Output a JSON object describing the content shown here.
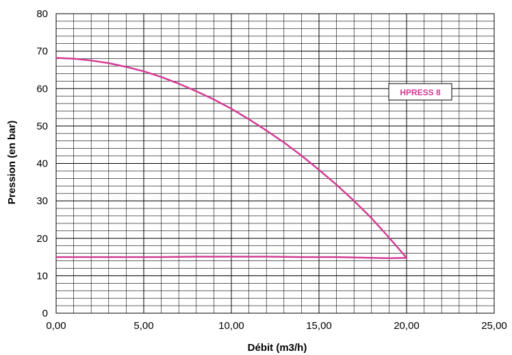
{
  "chart_data": {
    "type": "line",
    "title": "",
    "xlabel": "Débit (m3/h)",
    "ylabel": "Pression (en bar)",
    "xlim": [
      0,
      25
    ],
    "ylim": [
      0,
      80
    ],
    "x_ticks": [
      0,
      5,
      10,
      15,
      20,
      25
    ],
    "x_tick_labels": [
      "0,00",
      "5,00",
      "10,00",
      "15,00",
      "20,00",
      "25,00"
    ],
    "y_ticks": [
      0,
      10,
      20,
      30,
      40,
      50,
      60,
      70,
      80
    ],
    "y_tick_labels": [
      "0",
      "10",
      "20",
      "30",
      "40",
      "50",
      "60",
      "70",
      "80"
    ],
    "grid": true,
    "minor_x_step": 1,
    "minor_y_step": 2,
    "legend_position": "top-right",
    "series": [
      {
        "name": "HPRESS 8",
        "color": "#d23c94",
        "x": [
          0,
          1,
          2,
          3,
          4,
          5,
          6,
          7,
          8,
          9,
          10,
          11,
          12,
          13,
          14,
          15,
          16,
          17,
          18,
          19,
          20,
          19,
          18,
          16,
          14,
          12,
          10,
          8,
          6,
          4,
          2,
          0
        ],
        "y": [
          68.2,
          68,
          67.5,
          66.8,
          65.8,
          64.6,
          63.1,
          61.3,
          59.3,
          57.1,
          54.6,
          51.8,
          48.8,
          45.6,
          42.1,
          38.3,
          34.3,
          30.0,
          25.4,
          20.2,
          14.8,
          14.7,
          14.8,
          15,
          15,
          15.1,
          15.1,
          15.1,
          15,
          15,
          15,
          15
        ]
      }
    ]
  }
}
